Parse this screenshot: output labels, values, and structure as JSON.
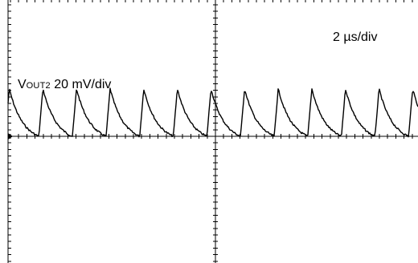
{
  "chart_data": {
    "type": "line",
    "title": "",
    "time_base_label": "2 µs/div",
    "channel": {
      "prefix": "V",
      "subscript": "OUT2",
      "scale_label": "20 mV/div"
    },
    "grid": "crosshair-with-minor-ticks",
    "divisions": {
      "x": 10,
      "y": 8
    },
    "xlim_div": [
      0,
      10
    ],
    "ylim_div": [
      -4,
      4
    ],
    "series": [
      {
        "waveform": "sawtooth-ripple",
        "period_div": 0.82,
        "first_peak_div": 0.03,
        "high_div": 1.45,
        "low_div": 0.0,
        "rise_fraction": 0.12,
        "noise": true
      }
    ],
    "colors": {
      "trace": "#000000",
      "background": "#ffffff",
      "grid": "#000000"
    }
  }
}
